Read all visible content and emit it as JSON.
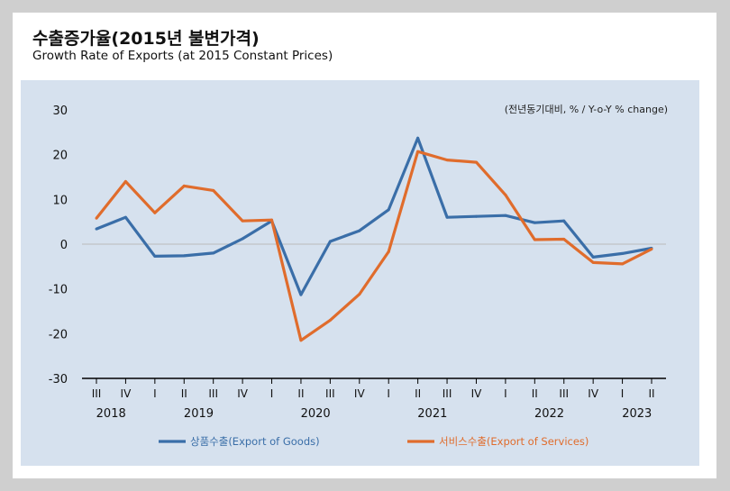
{
  "chart_data": {
    "type": "line",
    "title": "수출증가율(2015년 불변가격)",
    "subtitle": "Growth Rate of Exports (at 2015 Constant Prices)",
    "unit_note": "(전년동기대비, % / Y-o-Y % change)",
    "ylim": [
      -30,
      30
    ],
    "yticks": [
      30,
      20,
      10,
      0,
      -10,
      -20,
      -30
    ],
    "categories": [
      "III",
      "IV",
      "I",
      "II",
      "III",
      "IV",
      "I",
      "II",
      "III",
      "IV",
      "I",
      "II",
      "III",
      "IV",
      "I",
      "II",
      "III",
      "IV",
      "I",
      "II"
    ],
    "years": [
      {
        "label": "2018",
        "start": 0,
        "end": 1
      },
      {
        "label": "2019",
        "start": 2,
        "end": 5
      },
      {
        "label": "2020",
        "start": 6,
        "end": 9
      },
      {
        "label": "2021",
        "start": 10,
        "end": 13
      },
      {
        "label": "2022",
        "start": 14,
        "end": 17
      },
      {
        "label": "2023",
        "start": 18,
        "end": 19
      }
    ],
    "grid": false,
    "legend": "bottom",
    "series": [
      {
        "name": "상품수출(Export of Goods)",
        "color": "#3a6ea8",
        "values": [
          3.4,
          6.0,
          -2.7,
          -2.6,
          -2.0,
          1.2,
          5.2,
          -11.3,
          0.6,
          3.0,
          7.7,
          23.7,
          6.0,
          6.2,
          6.4,
          4.8,
          5.2,
          -2.9,
          -2.1,
          -0.9
        ]
      },
      {
        "name": "서비스수출(Export of Services)",
        "color": "#e06c2c",
        "values": [
          5.8,
          14.0,
          7.0,
          13.0,
          12.0,
          5.2,
          5.4,
          -21.5,
          -17.0,
          -11.2,
          -1.7,
          20.7,
          18.8,
          18.3,
          11.0,
          1.0,
          1.1,
          -4.1,
          -4.4,
          -1.1
        ]
      }
    ]
  }
}
